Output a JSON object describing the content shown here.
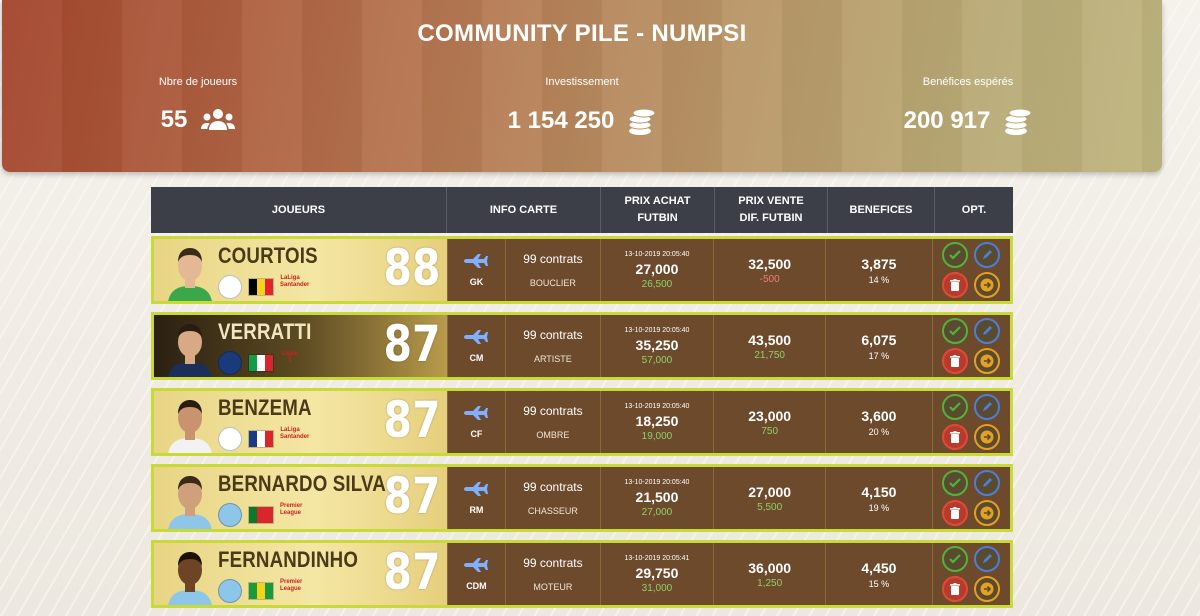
{
  "header": {
    "title": "COMMUNITY PILE - NUMPSI",
    "stats": [
      {
        "label": "Nbre de joueurs",
        "value": "55",
        "icon": "users-icon"
      },
      {
        "label": "Investissement",
        "value": "1 154 250",
        "icon": "coins-icon"
      },
      {
        "label": "Benéfices espérés",
        "value": "200 917",
        "icon": "coins-icon"
      }
    ]
  },
  "table": {
    "headers": {
      "players": "JOUEURS",
      "card_info": "INFO CARTE",
      "buy_line1": "PRIX ACHAT",
      "buy_line2": "FUTBIN",
      "sell_line1": "PRIX VENTE",
      "sell_line2": "DIF. FUTBIN",
      "profit": "BENEFICES",
      "options": "OPT."
    },
    "rows": [
      {
        "name": "COURTOIS",
        "rating": "88",
        "position": "GK",
        "contracts": "99 contrats",
        "chemistry": "BOUCLIER",
        "date": "13-10-2019 20:05:40",
        "buy": "27,000",
        "futbin": "26,500",
        "sell": "32,500",
        "diff": "-500",
        "profit": "3,875",
        "percent": "14 %",
        "league_text": "LaLiga Santander"
      },
      {
        "name": "VERRATTI",
        "rating": "87",
        "position": "CM",
        "contracts": "99 contrats",
        "chemistry": "ARTISTE",
        "date": "13-10-2019 20:05:40",
        "buy": "35,250",
        "futbin": "57,000",
        "sell": "43,500",
        "diff": "21,750",
        "profit": "6,075",
        "percent": "17 %",
        "league_text": "Ligue 1"
      },
      {
        "name": "BENZEMA",
        "rating": "87",
        "position": "CF",
        "contracts": "99 contrats",
        "chemistry": "OMBRE",
        "date": "13-10-2019 20:05:40",
        "buy": "18,250",
        "futbin": "19,000",
        "sell": "23,000",
        "diff": "750",
        "profit": "3,600",
        "percent": "20 %",
        "league_text": "LaLiga Santander"
      },
      {
        "name": "BERNARDO SILVA",
        "rating": "87",
        "position": "RM",
        "contracts": "99 contrats",
        "chemistry": "CHASSEUR",
        "date": "13-10-2019 20:05:40",
        "buy": "21,500",
        "futbin": "27,000",
        "sell": "27,000",
        "diff": "5,500",
        "profit": "4,150",
        "percent": "19 %",
        "league_text": "Premier League"
      },
      {
        "name": "FERNANDINHO",
        "rating": "87",
        "position": "CDM",
        "contracts": "99 contrats",
        "chemistry": "MOTEUR",
        "date": "13-10-2019 20:05:41",
        "buy": "29,750",
        "futbin": "31,000",
        "sell": "36,000",
        "diff": "1,250",
        "profit": "4,450",
        "percent": "15 %",
        "league_text": "Premier League"
      }
    ]
  },
  "colors": {
    "header_start": "#a4452d",
    "header_end": "#bfb57f",
    "table_head": "#3c3f47",
    "row_bg": "#6e4a2c",
    "row_border": "#c8d93a",
    "positive": "#8fd16a",
    "negative": "#f27b7b"
  }
}
